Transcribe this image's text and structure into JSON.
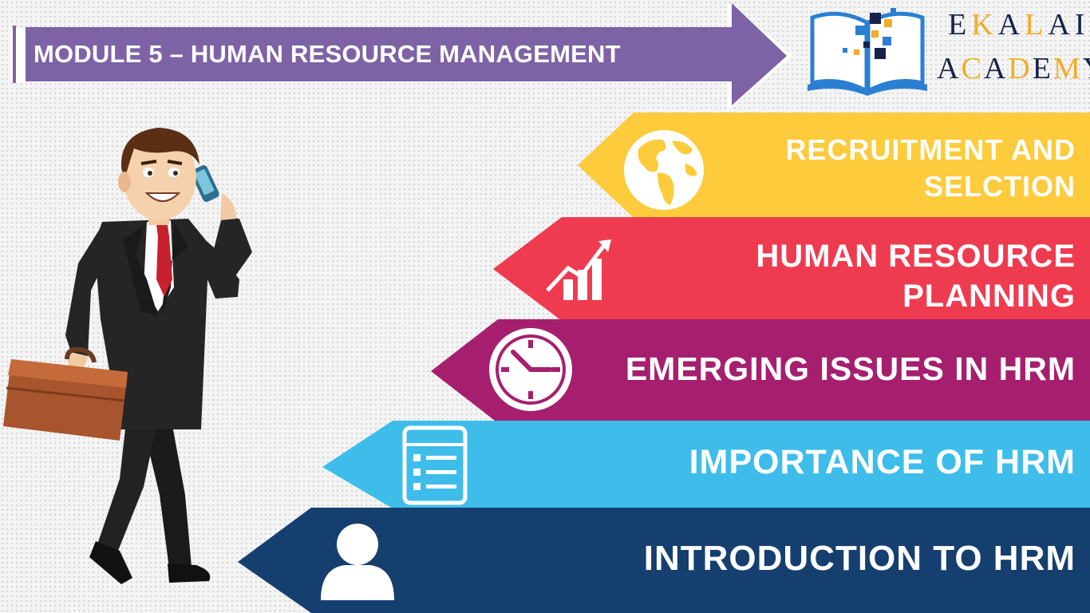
{
  "title": "MODULE 5 – HUMAN RESOURCE MANAGEMENT",
  "brand": {
    "line1": [
      "E",
      "K",
      "A",
      "L",
      "A",
      "I"
    ],
    "line2": [
      "A",
      "C",
      "A",
      "D",
      "E",
      "M",
      "Y"
    ]
  },
  "colors": {
    "title_arrow": "#8063a8",
    "band_recruitment": "#fdcb3b",
    "band_planning": "#ef3b50",
    "band_emerging": "#a61f6e",
    "band_importance": "#3ebdea",
    "band_introduction": "#153f6e",
    "brand_dark": "#16224a",
    "brand_accent": "#f0ad28"
  },
  "topics": [
    {
      "label_line1": "RECRUITMENT AND",
      "label_line2": "SELCTION",
      "icon": "globe-icon"
    },
    {
      "label_line1": "HUMAN RESOURCE",
      "label_line2": "PLANNING",
      "icon": "growth-chart-icon"
    },
    {
      "label_line1": "EMERGING ISSUES IN HRM",
      "icon": "clock-icon"
    },
    {
      "label_line1": "IMPORTANCE OF HRM",
      "icon": "checklist-icon"
    },
    {
      "label_line1": "INTRODUCTION TO HRM",
      "icon": "user-icon"
    }
  ]
}
